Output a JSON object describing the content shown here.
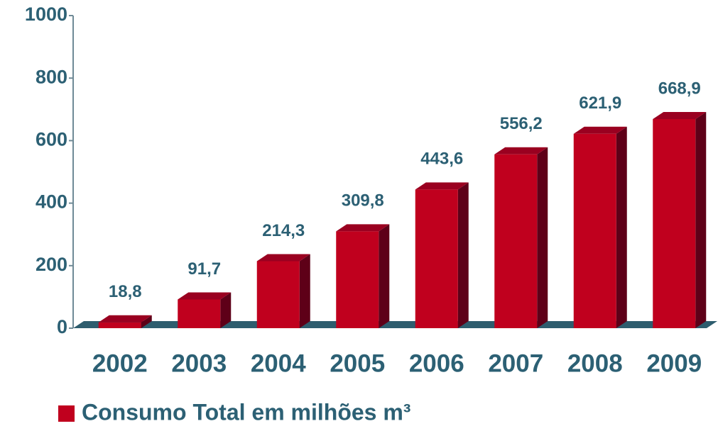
{
  "chart_data": {
    "type": "bar3d",
    "categories": [
      "2002",
      "2003",
      "2004",
      "2005",
      "2006",
      "2007",
      "2008",
      "2009"
    ],
    "series": [
      {
        "name": "Consumo Total em milhões m³",
        "color": "#c0001e",
        "values": [
          18.8,
          91.7,
          214.3,
          309.8,
          443.6,
          556.2,
          621.9,
          668.9
        ],
        "value_labels": [
          "18,8",
          "91,7",
          "214,3",
          "309,8",
          "443,6",
          "556,2",
          "621,9",
          "668,9"
        ]
      }
    ],
    "ylim": [
      0,
      1000
    ],
    "yticks": [
      0,
      200,
      400,
      600,
      800,
      1000
    ],
    "grid": false,
    "legend": "bottom-left",
    "text_color": "#2c6074",
    "floor_color": "#2e5d6e"
  }
}
